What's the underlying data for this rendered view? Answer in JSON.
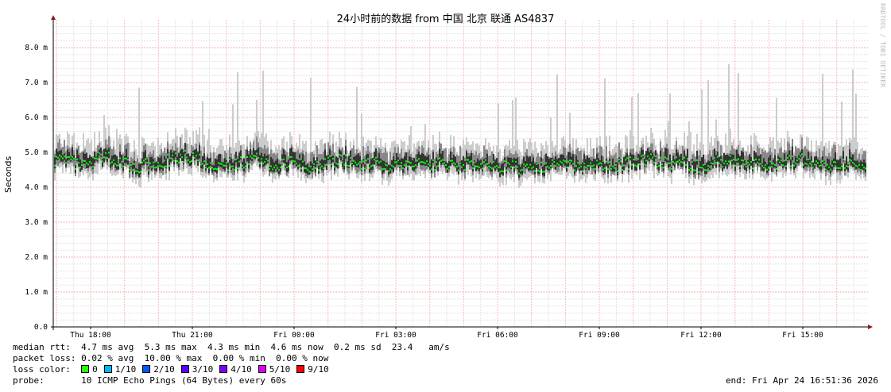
{
  "title": "24小时前的数据 from  中国 北京 联通 AS4837",
  "watermark": "RRDTOOL / TOBI OETIKER",
  "chart_data": {
    "type": "line",
    "ylabel": "Seconds",
    "ylim": [
      0,
      8.8
    ],
    "yticks": [
      "0.0",
      "1.0 m",
      "2.0 m",
      "3.0 m",
      "4.0 m",
      "5.0 m",
      "6.0 m",
      "7.0 m",
      "8.0 m"
    ],
    "ytick_values_ms": [
      0,
      1,
      2,
      3,
      4,
      5,
      6,
      7,
      8
    ],
    "xticks": [
      "Thu 18:00",
      "Thu 21:00",
      "Fri 00:00",
      "Fri 03:00",
      "Fri 06:00",
      "Fri 09:00",
      "Fri 12:00",
      "Fri 15:00"
    ],
    "grid": true,
    "time_range": [
      "Thu 16:51",
      "Fri 16:51"
    ],
    "median_ms_every_30min": [
      4.8,
      4.7,
      4.6,
      4.9,
      4.7,
      4.6,
      4.7,
      4.8,
      4.9,
      4.7,
      4.6,
      4.7,
      4.8,
      4.6,
      4.7,
      4.6,
      4.7,
      4.8,
      4.6,
      4.7,
      4.6,
      4.7,
      4.6,
      4.7,
      4.6,
      4.7,
      4.6,
      4.6,
      4.5,
      4.6,
      4.7,
      4.6,
      4.7,
      4.6,
      4.7,
      4.8,
      4.7,
      4.7,
      4.6,
      4.7,
      4.8,
      4.7,
      4.6,
      4.7,
      4.8,
      4.7,
      4.6,
      4.7,
      4.6
    ],
    "series": [
      {
        "name": "median rtt",
        "color": "#00ff00"
      }
    ],
    "smoke_colors": [
      "#cccccc",
      "#888888",
      "#333333"
    ]
  },
  "legend": {
    "median_rtt": {
      "label": "median rtt:",
      "text": "4.7 ms avg  5.3 ms max  4.3 ms min  4.6 ms now  0.2 ms sd  23.4   am/s"
    },
    "packet_loss": {
      "label": "packet loss:",
      "text": "0.02 % avg  10.00 % max  0.00 % min  0.00 % now"
    },
    "loss_color": {
      "label": "loss color:",
      "items": [
        {
          "label": "0",
          "color": "#26ff00"
        },
        {
          "label": "1/10",
          "color": "#00b8ff"
        },
        {
          "label": "2/10",
          "color": "#0059ff"
        },
        {
          "label": "3/10",
          "color": "#5e00ff"
        },
        {
          "label": "4/10",
          "color": "#7e00ff"
        },
        {
          "label": "5/10",
          "color": "#dd00ff"
        },
        {
          "label": "9/10",
          "color": "#ff0000"
        }
      ]
    },
    "probe": {
      "label": "probe:",
      "text": "10 ICMP Echo Pings (64 Bytes) every 60s"
    },
    "end": "end: Fri Apr 24 16:51:36 2026"
  }
}
